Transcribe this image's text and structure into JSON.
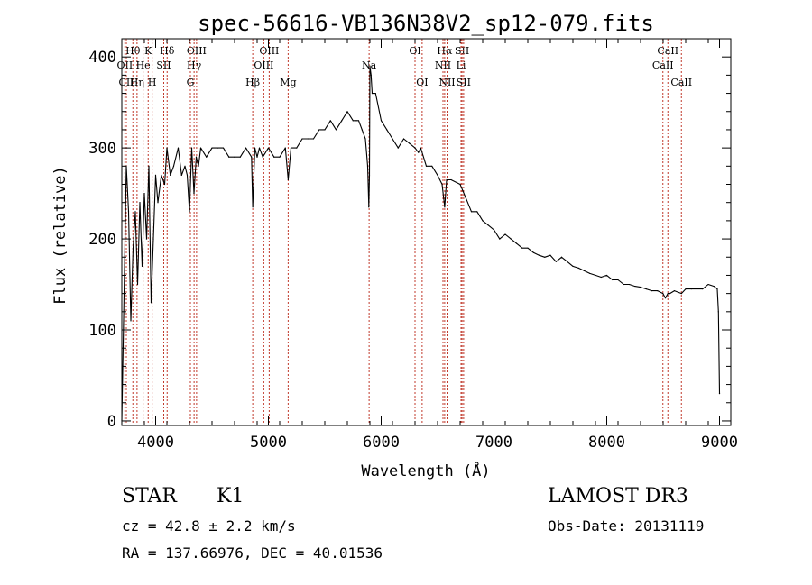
{
  "chart_data": {
    "type": "line",
    "title": "spec-56616-VB136N38V2_sp12-079.fits",
    "xlabel": "Wavelength (Å)",
    "ylabel": "Flux (relative)",
    "xlim": [
      3700,
      9100
    ],
    "ylim": [
      -5,
      420
    ],
    "xticks": [
      4000,
      5000,
      6000,
      7000,
      8000,
      9000
    ],
    "yticks": [
      0,
      100,
      200,
      300,
      400
    ],
    "xminor_step": 200,
    "yminor_step": 20,
    "series": [
      {
        "name": "spectrum",
        "x": [
          3700,
          3720,
          3740,
          3760,
          3780,
          3800,
          3820,
          3840,
          3860,
          3880,
          3900,
          3920,
          3940,
          3960,
          3980,
          4000,
          4020,
          4050,
          4080,
          4100,
          4130,
          4160,
          4200,
          4230,
          4260,
          4280,
          4300,
          4320,
          4340,
          4360,
          4380,
          4400,
          4450,
          4500,
          4550,
          4600,
          4650,
          4700,
          4750,
          4800,
          4850,
          4861,
          4880,
          4900,
          4920,
          4950,
          5000,
          5050,
          5100,
          5150,
          5175,
          5200,
          5250,
          5300,
          5350,
          5400,
          5450,
          5500,
          5550,
          5600,
          5650,
          5700,
          5750,
          5780,
          5800,
          5830,
          5860,
          5880,
          5890,
          5896,
          5900,
          5910,
          5920,
          5950,
          6000,
          6050,
          6100,
          6150,
          6200,
          6250,
          6300,
          6330,
          6350,
          6400,
          6450,
          6500,
          6540,
          6563,
          6580,
          6620,
          6700,
          6750,
          6800,
          6850,
          6900,
          6950,
          7000,
          7050,
          7100,
          7150,
          7200,
          7250,
          7300,
          7350,
          7400,
          7450,
          7500,
          7550,
          7600,
          7650,
          7700,
          7750,
          7800,
          7850,
          7900,
          7950,
          8000,
          8050,
          8100,
          8150,
          8200,
          8250,
          8300,
          8350,
          8400,
          8450,
          8498,
          8520,
          8542,
          8560,
          8600,
          8662,
          8700,
          8750,
          8800,
          8850,
          8900,
          8950,
          8980,
          8990,
          9000
        ],
        "y": [
          0,
          140,
          280,
          230,
          110,
          190,
          230,
          150,
          240,
          170,
          250,
          200,
          280,
          130,
          200,
          270,
          240,
          270,
          260,
          300,
          270,
          280,
          300,
          270,
          280,
          270,
          230,
          300,
          250,
          290,
          280,
          300,
          290,
          300,
          300,
          300,
          290,
          290,
          290,
          300,
          290,
          235,
          300,
          290,
          300,
          290,
          300,
          290,
          290,
          300,
          265,
          300,
          300,
          310,
          310,
          310,
          320,
          320,
          330,
          320,
          330,
          340,
          330,
          330,
          330,
          320,
          310,
          280,
          235,
          270,
          390,
          380,
          360,
          360,
          330,
          320,
          310,
          300,
          310,
          305,
          300,
          295,
          300,
          280,
          280,
          270,
          260,
          235,
          265,
          265,
          260,
          245,
          230,
          230,
          220,
          215,
          210,
          200,
          205,
          200,
          195,
          190,
          190,
          185,
          182,
          180,
          182,
          175,
          180,
          175,
          170,
          168,
          165,
          162,
          160,
          158,
          160,
          155,
          155,
          150,
          150,
          148,
          147,
          145,
          143,
          143,
          140,
          135,
          140,
          140,
          143,
          140,
          145,
          145,
          145,
          145,
          150,
          148,
          145,
          120,
          30
        ]
      }
    ],
    "lines": [
      {
        "name": "Hθ",
        "wl": 3798,
        "row": 0
      },
      {
        "name": "OII",
        "wl": 3727,
        "row": 1
      },
      {
        "name": "CII",
        "wl": 3740,
        "row": 2
      },
      {
        "name": "Hη",
        "wl": 3835,
        "row": 2
      },
      {
        "name": "He",
        "wl": 3889,
        "row": 1
      },
      {
        "name": "K",
        "wl": 3934,
        "row": 0
      },
      {
        "name": "SII",
        "wl": 4072,
        "row": 1
      },
      {
        "name": "H",
        "wl": 3969,
        "row": 2
      },
      {
        "name": "Hδ",
        "wl": 4102,
        "row": 0
      },
      {
        "name": "OIII",
        "wl": 4363,
        "row": 0
      },
      {
        "name": "Hγ",
        "wl": 4341,
        "row": 1
      },
      {
        "name": "G",
        "wl": 4308,
        "row": 2
      },
      {
        "name": "OIII",
        "wl": 5007,
        "row": 0
      },
      {
        "name": "OIII",
        "wl": 4959,
        "row": 1
      },
      {
        "name": "Hβ",
        "wl": 4861,
        "row": 2
      },
      {
        "name": "Mg",
        "wl": 5175,
        "row": 2
      },
      {
        "name": "Na",
        "wl": 5893,
        "row": 1
      },
      {
        "name": "OI",
        "wl": 6300,
        "row": 0
      },
      {
        "name": "OI",
        "wl": 6363,
        "row": 2
      },
      {
        "name": "Hα",
        "wl": 6563,
        "row": 0
      },
      {
        "name": "NII",
        "wl": 6548,
        "row": 1
      },
      {
        "name": "NII",
        "wl": 6584,
        "row": 2
      },
      {
        "name": "SII",
        "wl": 6717,
        "row": 0
      },
      {
        "name": "Li",
        "wl": 6708,
        "row": 1
      },
      {
        "name": "SII",
        "wl": 6731,
        "row": 2
      },
      {
        "name": "CaII",
        "wl": 8542,
        "row": 0
      },
      {
        "name": "CaII",
        "wl": 8498,
        "row": 1
      },
      {
        "name": "CaII",
        "wl": 8662,
        "row": 2
      }
    ]
  },
  "info": {
    "object_type": "STAR",
    "object_class": "K1",
    "survey": "LAMOST DR3",
    "redshift": "cz = 42.8 ± 2.2 km/s",
    "obs_date": "Obs-Date: 20131119",
    "coords": "RA = 137.66976, DEC =  40.01536"
  }
}
